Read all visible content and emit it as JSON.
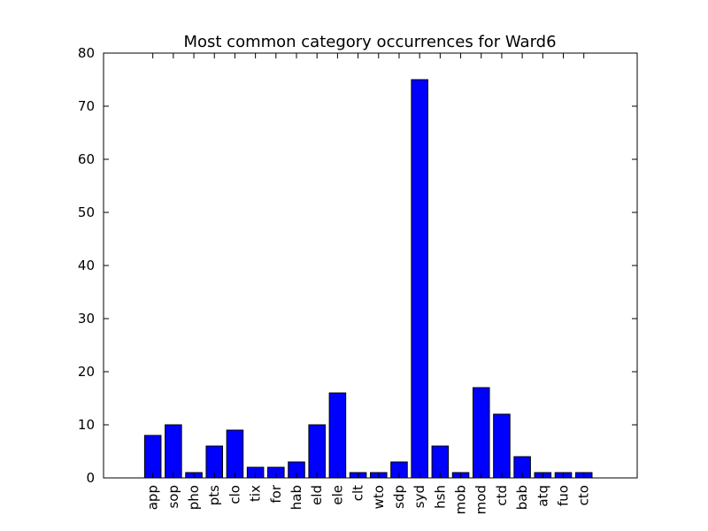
{
  "chart_data": {
    "type": "bar",
    "title": "Most common category occurrences for Ward6",
    "xlabel": "",
    "ylabel": "",
    "categories": [
      "app",
      "sop",
      "pho",
      "pts",
      "clo",
      "tix",
      "for",
      "hab",
      "eld",
      "ele",
      "clt",
      "wto",
      "sdp",
      "syd",
      "hsh",
      "mob",
      "mod",
      "ctd",
      "bab",
      "atq",
      "fuo",
      "cto"
    ],
    "values": [
      8,
      10,
      1,
      6,
      9,
      2,
      2,
      3,
      10,
      16,
      1,
      1,
      3,
      75,
      6,
      1,
      17,
      12,
      4,
      1,
      1,
      1
    ],
    "ylim": [
      0,
      80
    ],
    "yticks": [
      0,
      10,
      20,
      30,
      40,
      50,
      60,
      70,
      80
    ],
    "grid": false,
    "legend": "none",
    "bar_color": "#0000ff"
  }
}
